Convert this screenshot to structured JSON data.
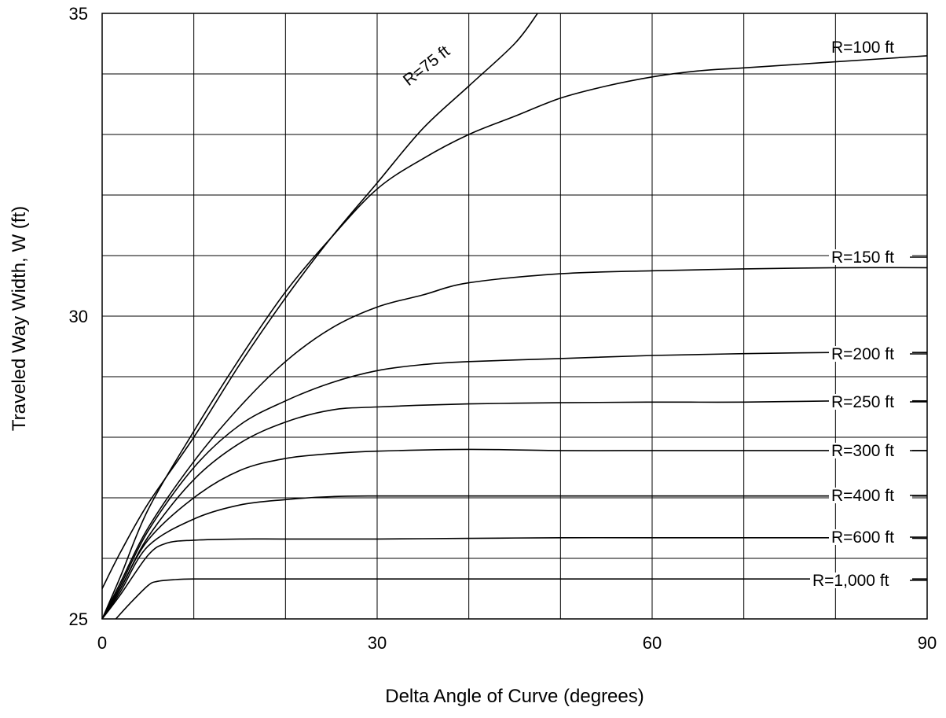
{
  "chart_data": {
    "type": "line",
    "xlabel": "Delta Angle of Curve (degrees)",
    "ylabel": "Traveled Way Width, W (ft)",
    "xlim": [
      0,
      90
    ],
    "ylim": [
      25,
      35
    ],
    "xticks": [
      0,
      30,
      60,
      90
    ],
    "yticks": [
      25,
      30,
      35
    ],
    "xgrid": [
      0,
      10,
      20,
      30,
      40,
      50,
      60,
      70,
      80,
      90
    ],
    "ygrid": [
      25,
      26,
      27,
      28,
      29,
      30,
      31,
      32,
      33,
      34,
      35
    ],
    "grid": true,
    "series": [
      {
        "name": "R=75 ft",
        "x": [
          0,
          2,
          5,
          10,
          15,
          20,
          25,
          30,
          35,
          40,
          45,
          47.5
        ],
        "y": [
          25.5,
          26.1,
          26.9,
          28.0,
          29.2,
          30.3,
          31.3,
          32.2,
          33.1,
          33.8,
          34.5,
          35.0
        ]
      },
      {
        "name": "R=100 ft",
        "x": [
          0,
          2,
          5,
          10,
          15,
          20,
          25,
          30,
          35,
          40,
          45,
          50,
          55,
          60,
          65,
          70,
          80,
          90
        ],
        "y": [
          25.0,
          25.7,
          26.8,
          28.1,
          29.3,
          30.4,
          31.3,
          32.1,
          32.6,
          33.0,
          33.3,
          33.6,
          33.8,
          33.95,
          34.05,
          34.1,
          34.2,
          34.3
        ]
      },
      {
        "name": "R=150 ft",
        "x": [
          0,
          2,
          5,
          10,
          15,
          20,
          25,
          30,
          35,
          40,
          50,
          60,
          70,
          80,
          90
        ],
        "y": [
          25.0,
          25.6,
          26.5,
          27.6,
          28.5,
          29.25,
          29.8,
          30.15,
          30.35,
          30.55,
          30.7,
          30.75,
          30.78,
          30.8,
          30.8
        ]
      },
      {
        "name": "R=200 ft",
        "x": [
          0,
          2,
          5,
          10,
          15,
          20,
          25,
          30,
          35,
          40,
          50,
          60,
          70,
          80,
          90
        ],
        "y": [
          25.0,
          25.55,
          26.45,
          27.5,
          28.2,
          28.6,
          28.9,
          29.1,
          29.2,
          29.25,
          29.3,
          29.35,
          29.38,
          29.4,
          29.4
        ]
      },
      {
        "name": "R=250 ft",
        "x": [
          0,
          2,
          5,
          10,
          15,
          20,
          25,
          30,
          40,
          50,
          60,
          70,
          80,
          90
        ],
        "y": [
          25.0,
          25.5,
          26.35,
          27.3,
          27.9,
          28.25,
          28.45,
          28.5,
          28.55,
          28.57,
          28.58,
          28.58,
          28.6,
          28.6
        ]
      },
      {
        "name": "R=300 ft",
        "x": [
          0,
          2,
          5,
          10,
          15,
          20,
          25,
          30,
          40,
          50,
          60,
          70,
          80,
          90
        ],
        "y": [
          25.0,
          25.5,
          26.3,
          27.0,
          27.45,
          27.65,
          27.73,
          27.77,
          27.8,
          27.78,
          27.78,
          27.78,
          27.78,
          27.78
        ]
      },
      {
        "name": "R=400 ft",
        "x": [
          0,
          2,
          5,
          10,
          15,
          20,
          25,
          30,
          40,
          50,
          60,
          70,
          80,
          90
        ],
        "y": [
          25.0,
          25.45,
          26.2,
          26.65,
          26.88,
          26.97,
          27.02,
          27.03,
          27.03,
          27.03,
          27.03,
          27.03,
          27.03,
          27.03
        ]
      },
      {
        "name": "R=600 ft",
        "x": [
          0,
          2,
          5,
          7,
          10,
          15,
          20,
          30,
          40,
          50,
          60,
          70,
          80,
          90
        ],
        "y": [
          25.0,
          25.4,
          26.05,
          26.25,
          26.3,
          26.32,
          26.32,
          26.32,
          26.33,
          26.34,
          26.34,
          26.34,
          26.34,
          26.33
        ]
      },
      {
        "name": "R=1,000 ft",
        "x": [
          1.5,
          3,
          5,
          6,
          8,
          10,
          15,
          20,
          30,
          40,
          50,
          60,
          70,
          80,
          90
        ],
        "y": [
          25.0,
          25.25,
          25.55,
          25.62,
          25.65,
          25.66,
          25.66,
          25.66,
          25.66,
          25.66,
          25.66,
          25.66,
          25.66,
          25.66,
          25.66
        ]
      }
    ],
    "labels": [
      {
        "text": "R=75 ft"
      },
      {
        "text": "R=100 ft"
      },
      {
        "text": "R=150 ft"
      },
      {
        "text": "R=200 ft"
      },
      {
        "text": "R=250 ft"
      },
      {
        "text": "R=300 ft"
      },
      {
        "text": "R=400 ft"
      },
      {
        "text": "R=600 ft"
      },
      {
        "text": "R=1,000 ft"
      }
    ]
  }
}
